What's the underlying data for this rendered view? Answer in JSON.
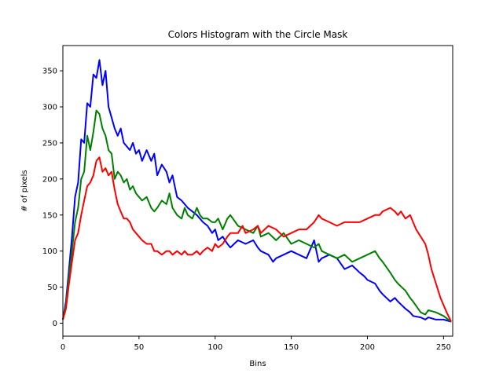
{
  "chart_data": {
    "type": "line",
    "title": "Colors Histogram with the Circle Mask",
    "xlabel": "Bins",
    "ylabel": "# of pixels",
    "xlim": [
      0,
      256
    ],
    "ylim": [
      -18,
      385
    ],
    "xticks": [
      0,
      50,
      100,
      150,
      200,
      250
    ],
    "yticks": [
      0,
      50,
      100,
      150,
      200,
      250,
      300,
      350
    ],
    "grid": false,
    "legend": "none",
    "series": [
      {
        "color": "#0000ff",
        "points": [
          [
            0,
            5
          ],
          [
            2,
            30
          ],
          [
            4,
            75
          ],
          [
            6,
            120
          ],
          [
            8,
            175
          ],
          [
            10,
            195
          ],
          [
            12,
            255
          ],
          [
            14,
            250
          ],
          [
            16,
            305
          ],
          [
            18,
            300
          ],
          [
            20,
            345
          ],
          [
            22,
            340
          ],
          [
            24,
            365
          ],
          [
            26,
            330
          ],
          [
            28,
            350
          ],
          [
            30,
            300
          ],
          [
            32,
            285
          ],
          [
            34,
            270
          ],
          [
            36,
            260
          ],
          [
            38,
            270
          ],
          [
            40,
            250
          ],
          [
            42,
            245
          ],
          [
            44,
            240
          ],
          [
            46,
            250
          ],
          [
            48,
            235
          ],
          [
            50,
            240
          ],
          [
            52,
            225
          ],
          [
            55,
            240
          ],
          [
            58,
            225
          ],
          [
            60,
            235
          ],
          [
            62,
            205
          ],
          [
            65,
            220
          ],
          [
            68,
            210
          ],
          [
            70,
            195
          ],
          [
            72,
            205
          ],
          [
            75,
            175
          ],
          [
            78,
            170
          ],
          [
            80,
            165
          ],
          [
            82,
            160
          ],
          [
            85,
            155
          ],
          [
            88,
            150
          ],
          [
            90,
            145
          ],
          [
            92,
            140
          ],
          [
            95,
            135
          ],
          [
            98,
            125
          ],
          [
            100,
            130
          ],
          [
            102,
            115
          ],
          [
            105,
            120
          ],
          [
            108,
            110
          ],
          [
            110,
            105
          ],
          [
            115,
            115
          ],
          [
            120,
            110
          ],
          [
            125,
            115
          ],
          [
            128,
            105
          ],
          [
            130,
            100
          ],
          [
            135,
            95
          ],
          [
            138,
            85
          ],
          [
            140,
            90
          ],
          [
            145,
            95
          ],
          [
            150,
            100
          ],
          [
            155,
            95
          ],
          [
            160,
            90
          ],
          [
            165,
            115
          ],
          [
            168,
            85
          ],
          [
            170,
            90
          ],
          [
            175,
            95
          ],
          [
            180,
            90
          ],
          [
            185,
            75
          ],
          [
            190,
            80
          ],
          [
            195,
            70
          ],
          [
            198,
            65
          ],
          [
            200,
            60
          ],
          [
            205,
            55
          ],
          [
            208,
            45
          ],
          [
            210,
            40
          ],
          [
            215,
            30
          ],
          [
            218,
            35
          ],
          [
            220,
            30
          ],
          [
            225,
            20
          ],
          [
            228,
            15
          ],
          [
            230,
            10
          ],
          [
            235,
            8
          ],
          [
            238,
            5
          ],
          [
            240,
            8
          ],
          [
            245,
            5
          ],
          [
            250,
            5
          ],
          [
            255,
            2
          ]
        ]
      },
      {
        "color": "#008000",
        "points": [
          [
            0,
            5
          ],
          [
            2,
            25
          ],
          [
            4,
            65
          ],
          [
            6,
            100
          ],
          [
            8,
            140
          ],
          [
            10,
            160
          ],
          [
            12,
            200
          ],
          [
            14,
            210
          ],
          [
            16,
            260
          ],
          [
            18,
            240
          ],
          [
            20,
            265
          ],
          [
            22,
            295
          ],
          [
            24,
            290
          ],
          [
            26,
            270
          ],
          [
            28,
            260
          ],
          [
            30,
            240
          ],
          [
            32,
            235
          ],
          [
            34,
            200
          ],
          [
            36,
            210
          ],
          [
            38,
            205
          ],
          [
            40,
            195
          ],
          [
            42,
            200
          ],
          [
            44,
            185
          ],
          [
            46,
            190
          ],
          [
            48,
            180
          ],
          [
            50,
            175
          ],
          [
            52,
            170
          ],
          [
            55,
            175
          ],
          [
            58,
            160
          ],
          [
            60,
            155
          ],
          [
            62,
            160
          ],
          [
            65,
            170
          ],
          [
            68,
            165
          ],
          [
            70,
            180
          ],
          [
            72,
            160
          ],
          [
            75,
            150
          ],
          [
            78,
            145
          ],
          [
            80,
            160
          ],
          [
            82,
            150
          ],
          [
            85,
            145
          ],
          [
            88,
            160
          ],
          [
            90,
            150
          ],
          [
            92,
            145
          ],
          [
            95,
            145
          ],
          [
            98,
            140
          ],
          [
            100,
            140
          ],
          [
            102,
            145
          ],
          [
            105,
            130
          ],
          [
            108,
            145
          ],
          [
            110,
            150
          ],
          [
            115,
            135
          ],
          [
            120,
            130
          ],
          [
            125,
            125
          ],
          [
            128,
            135
          ],
          [
            130,
            120
          ],
          [
            135,
            125
          ],
          [
            140,
            115
          ],
          [
            145,
            125
          ],
          [
            150,
            110
          ],
          [
            155,
            115
          ],
          [
            160,
            110
          ],
          [
            165,
            105
          ],
          [
            168,
            110
          ],
          [
            170,
            100
          ],
          [
            175,
            95
          ],
          [
            180,
            90
          ],
          [
            185,
            95
          ],
          [
            190,
            85
          ],
          [
            195,
            90
          ],
          [
            200,
            95
          ],
          [
            205,
            100
          ],
          [
            208,
            90
          ],
          [
            210,
            85
          ],
          [
            215,
            70
          ],
          [
            218,
            60
          ],
          [
            220,
            55
          ],
          [
            225,
            45
          ],
          [
            228,
            35
          ],
          [
            230,
            30
          ],
          [
            235,
            15
          ],
          [
            238,
            12
          ],
          [
            240,
            18
          ],
          [
            245,
            15
          ],
          [
            250,
            10
          ],
          [
            255,
            2
          ]
        ]
      },
      {
        "color": "#ff0000",
        "points": [
          [
            0,
            5
          ],
          [
            2,
            20
          ],
          [
            4,
            55
          ],
          [
            6,
            85
          ],
          [
            8,
            115
          ],
          [
            10,
            125
          ],
          [
            12,
            150
          ],
          [
            14,
            170
          ],
          [
            16,
            190
          ],
          [
            18,
            195
          ],
          [
            20,
            205
          ],
          [
            22,
            225
          ],
          [
            24,
            230
          ],
          [
            26,
            210
          ],
          [
            28,
            215
          ],
          [
            30,
            205
          ],
          [
            32,
            210
          ],
          [
            34,
            185
          ],
          [
            36,
            165
          ],
          [
            38,
            155
          ],
          [
            40,
            145
          ],
          [
            42,
            145
          ],
          [
            44,
            140
          ],
          [
            46,
            130
          ],
          [
            48,
            125
          ],
          [
            50,
            120
          ],
          [
            52,
            115
          ],
          [
            55,
            110
          ],
          [
            58,
            110
          ],
          [
            60,
            100
          ],
          [
            62,
            100
          ],
          [
            65,
            95
          ],
          [
            68,
            100
          ],
          [
            70,
            100
          ],
          [
            72,
            95
          ],
          [
            75,
            100
          ],
          [
            78,
            95
          ],
          [
            80,
            100
          ],
          [
            82,
            95
          ],
          [
            85,
            95
          ],
          [
            88,
            100
          ],
          [
            90,
            95
          ],
          [
            92,
            100
          ],
          [
            95,
            105
          ],
          [
            98,
            100
          ],
          [
            100,
            110
          ],
          [
            102,
            105
          ],
          [
            105,
            110
          ],
          [
            108,
            120
          ],
          [
            110,
            125
          ],
          [
            115,
            125
          ],
          [
            118,
            135
          ],
          [
            120,
            125
          ],
          [
            125,
            130
          ],
          [
            128,
            135
          ],
          [
            130,
            125
          ],
          [
            135,
            135
          ],
          [
            140,
            130
          ],
          [
            145,
            120
          ],
          [
            150,
            125
          ],
          [
            155,
            130
          ],
          [
            160,
            130
          ],
          [
            165,
            140
          ],
          [
            168,
            150
          ],
          [
            170,
            145
          ],
          [
            175,
            140
          ],
          [
            180,
            135
          ],
          [
            185,
            140
          ],
          [
            190,
            140
          ],
          [
            195,
            140
          ],
          [
            200,
            145
          ],
          [
            205,
            150
          ],
          [
            208,
            150
          ],
          [
            210,
            155
          ],
          [
            215,
            160
          ],
          [
            218,
            155
          ],
          [
            220,
            150
          ],
          [
            222,
            155
          ],
          [
            225,
            145
          ],
          [
            228,
            150
          ],
          [
            230,
            140
          ],
          [
            232,
            130
          ],
          [
            235,
            120
          ],
          [
            238,
            110
          ],
          [
            240,
            95
          ],
          [
            242,
            75
          ],
          [
            245,
            55
          ],
          [
            248,
            35
          ],
          [
            250,
            25
          ],
          [
            252,
            15
          ],
          [
            255,
            2
          ]
        ]
      }
    ]
  }
}
